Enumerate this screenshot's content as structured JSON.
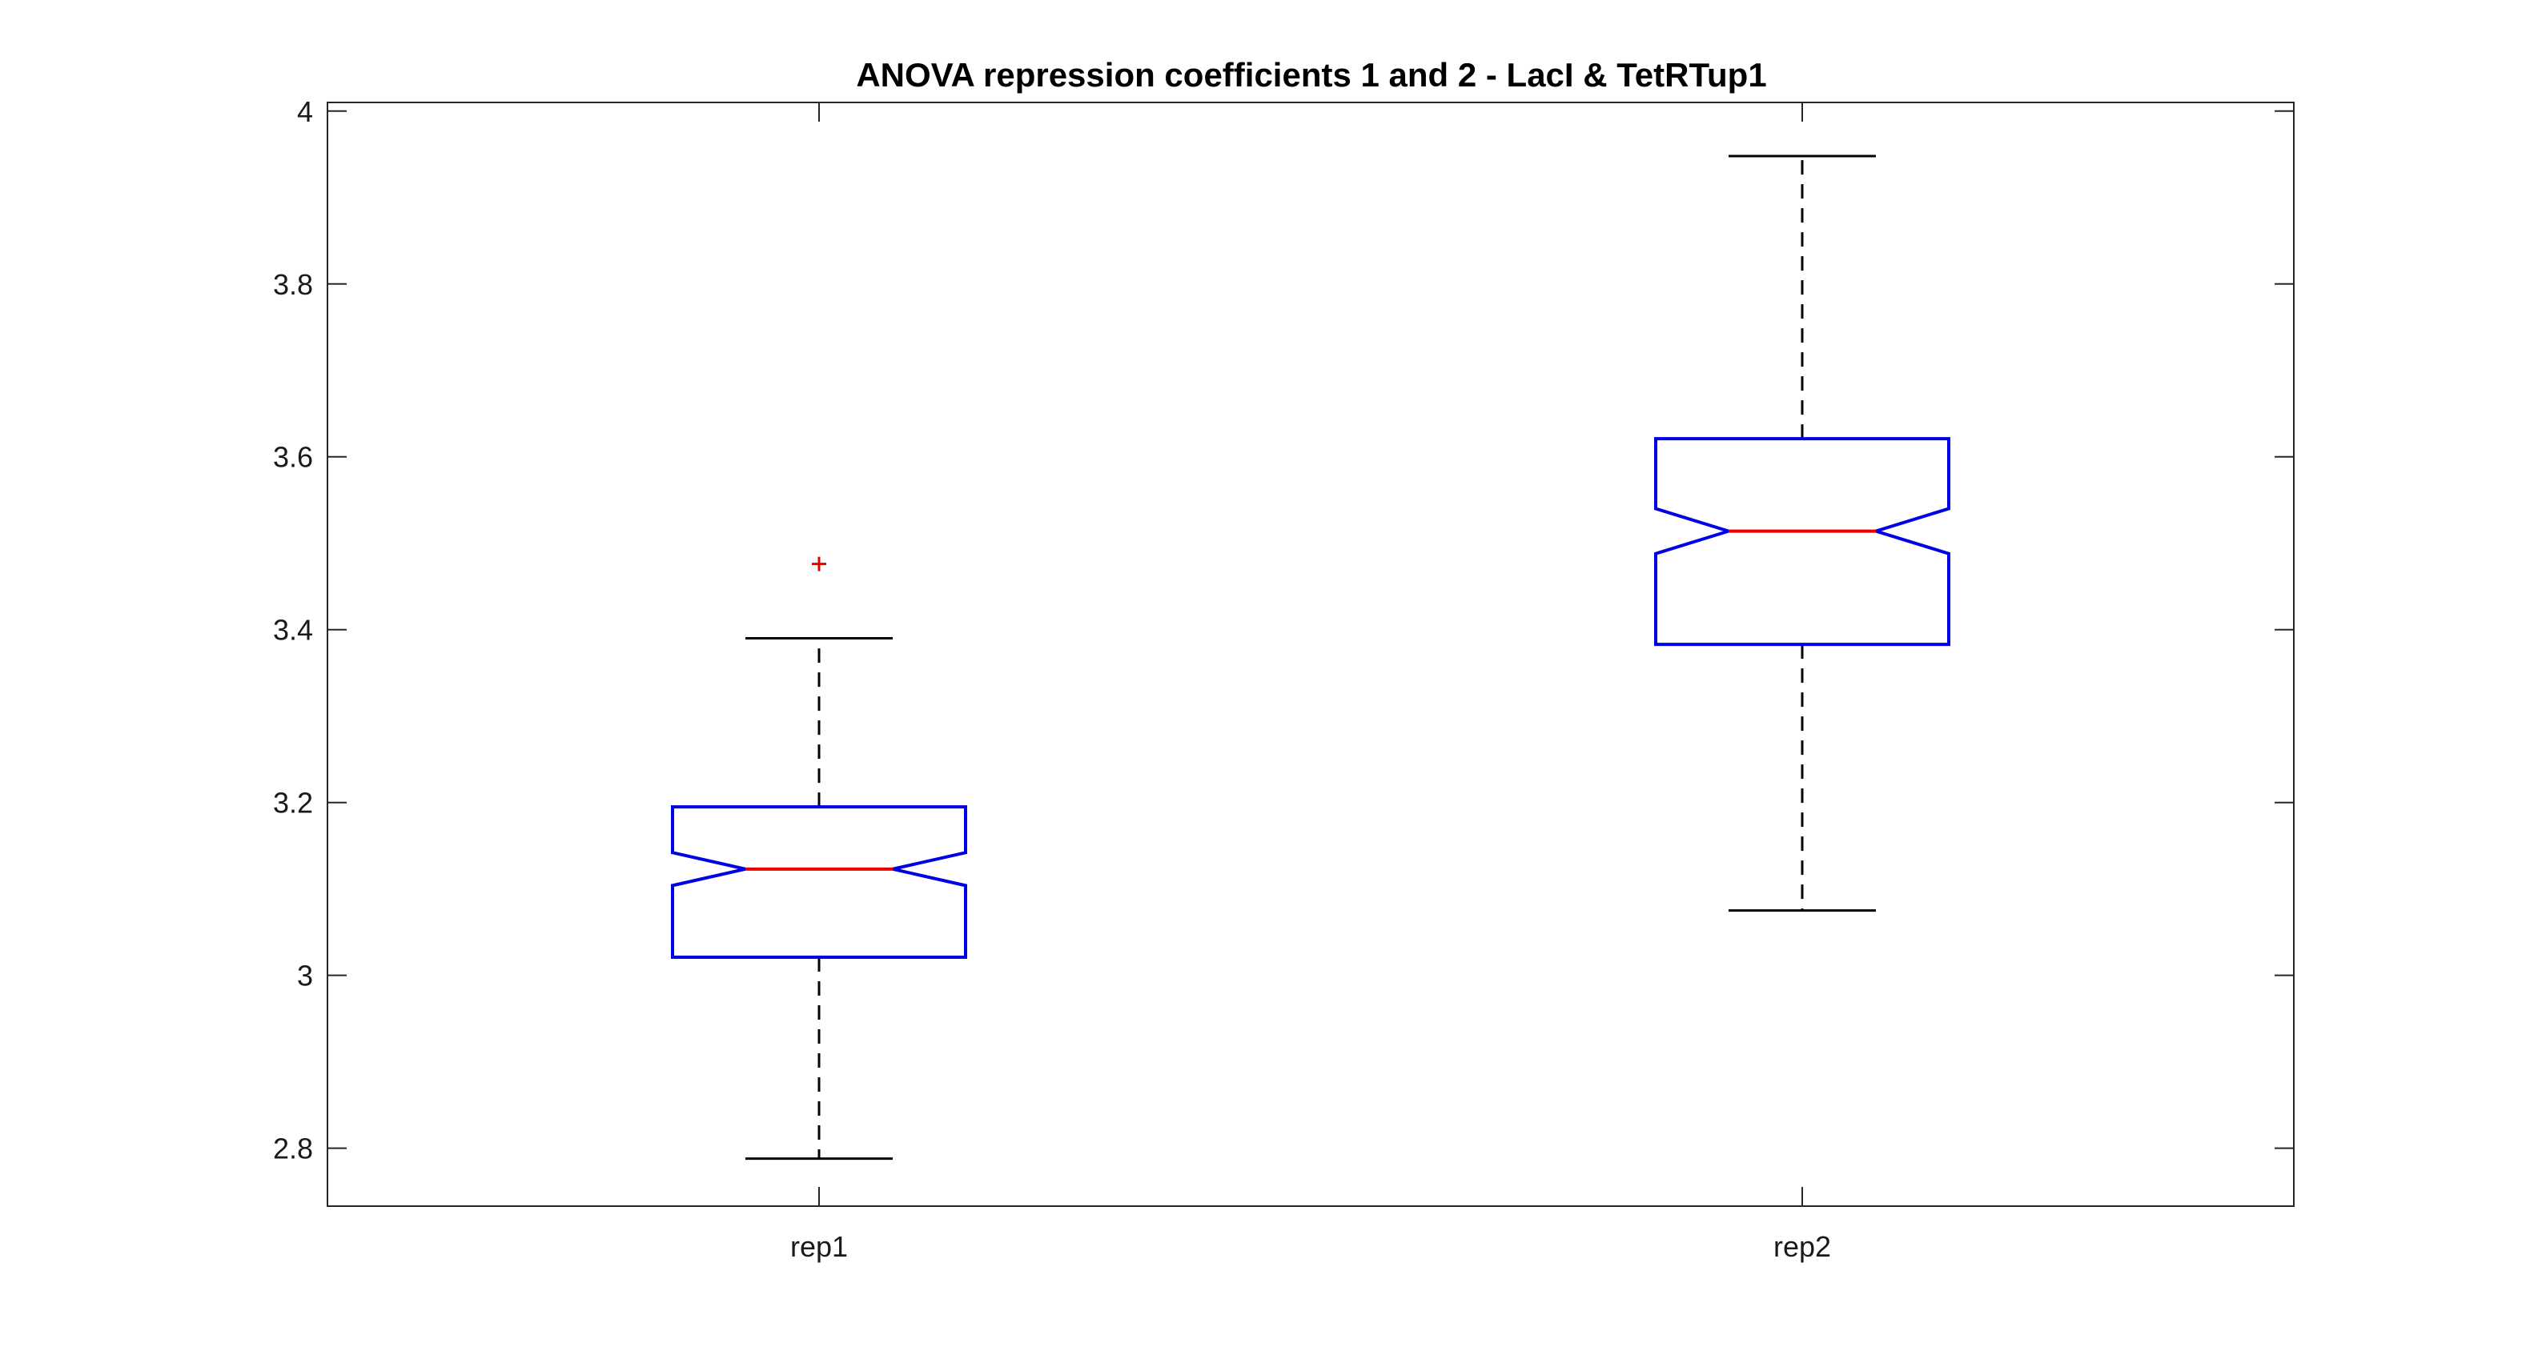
{
  "chart_data": {
    "type": "boxplot",
    "title": "ANOVA repression coefficients 1 and 2 - LacI & TetRTup1",
    "xlabel": "",
    "ylabel": "",
    "ylim": [
      2.733,
      4.01
    ],
    "yticks": [
      2.8,
      3,
      3.2,
      3.4,
      3.6,
      3.8,
      4
    ],
    "ytick_labels": [
      "2.8",
      "3",
      "3.2",
      "3.4",
      "3.6",
      "3.8",
      "4"
    ],
    "categories": [
      "rep1",
      "rep2"
    ],
    "notched": true,
    "grid": false,
    "series": [
      {
        "category": "rep1",
        "whisker_low": 2.788,
        "q1": 3.021,
        "median": 3.123,
        "q3": 3.195,
        "whisker_high": 3.39,
        "notch_low": 3.104,
        "notch_high": 3.142,
        "outliers": [
          3.476
        ]
      },
      {
        "category": "rep2",
        "whisker_low": 3.075,
        "q1": 3.383,
        "median": 3.514,
        "q3": 3.621,
        "whisker_high": 3.948,
        "notch_low": 3.488,
        "notch_high": 3.54,
        "outliers": []
      }
    ],
    "colors": {
      "box": "#0000e6",
      "median": "#e60000",
      "whisker": "#000000",
      "outlier": "#e60000",
      "axes": "#262626"
    }
  }
}
